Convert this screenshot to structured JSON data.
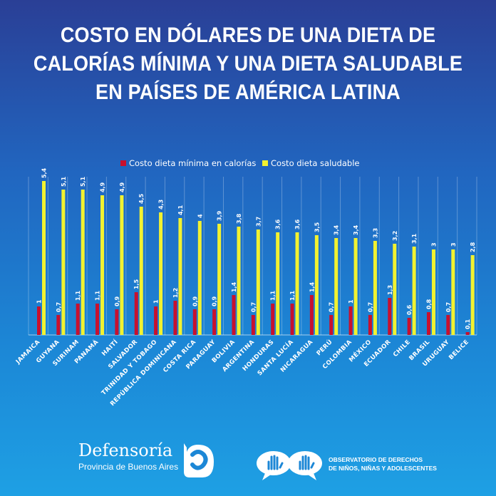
{
  "chart_data": {
    "type": "bar",
    "title_lines": [
      "COSTO EN DÓLARES DE UNA DIETA DE",
      "CALORÍAS MÍNIMA Y UNA DIETA SALUDABLE",
      "EN PAÍSES DE AMÉRICA LATINA"
    ],
    "categories": [
      "JAMAICA",
      "GUYANA",
      "SURINAM",
      "PANAMÁ",
      "HAITÍ",
      "SALVADOR",
      "TRINIDAD Y TOBAGO",
      "REPÚBLICA DOMINICANA",
      "COSTA RICA",
      "PARAGUAY",
      "BOLIVIA",
      "ARGENTINA",
      "HONDURAS",
      "SANTA LUCÍA",
      "NICARAGUA",
      "PERÚ",
      "COLOMBIA",
      "MÉXICO",
      "ECUADOR",
      "CHILE",
      "BRASIL",
      "URUGUAY",
      "BELICE"
    ],
    "series": [
      {
        "name": "Costo dieta mínima en calorías",
        "color": "#c8102e",
        "values": [
          1,
          0.7,
          1.1,
          1.1,
          0.9,
          1.5,
          1,
          1.2,
          0.9,
          0.9,
          1.4,
          0.7,
          1.1,
          1.1,
          1.4,
          0.7,
          1,
          0.7,
          1.3,
          0.6,
          0.8,
          0.7,
          0.1
        ],
        "labels": [
          "1",
          "0,7",
          "1,1",
          "1,1",
          "0,9",
          "1,5",
          "1",
          "1,2",
          "0,9",
          "0,9",
          "1,4",
          "0,7",
          "1,1",
          "1,1",
          "1,4",
          "0,7",
          "1",
          "0,7",
          "1,3",
          "0,6",
          "0,8",
          "0,7",
          "0,1"
        ]
      },
      {
        "name": "Costo dieta saludable",
        "color": "#f2f230",
        "values": [
          5.4,
          5.1,
          5.1,
          4.9,
          4.9,
          4.5,
          4.3,
          4.1,
          4,
          3.9,
          3.8,
          3.7,
          3.6,
          3.6,
          3.5,
          3.4,
          3.4,
          3.3,
          3.2,
          3.1,
          3,
          3,
          2.8
        ],
        "labels": [
          "5,4",
          "5,1",
          "5,1",
          "4,9",
          "4,9",
          "4,5",
          "4,3",
          "4,1",
          "4",
          "3,9",
          "3,8",
          "3,7",
          "3,6",
          "3,6",
          "3,5",
          "3,4",
          "3,4",
          "3,3",
          "3,2",
          "3,1",
          "3",
          "3",
          "2,8"
        ]
      }
    ],
    "ylim": [
      0,
      5.5
    ],
    "grid": true,
    "legend_position": "top-center"
  },
  "footer": {
    "org_name": "Defensoría",
    "org_sub": "Provincia de Buenos Aires",
    "observatory_lines": [
      "OBSERVATORIO DE DERECHOS",
      "DE NIÑOS, NIÑAS Y ADOLESCENTES"
    ]
  }
}
